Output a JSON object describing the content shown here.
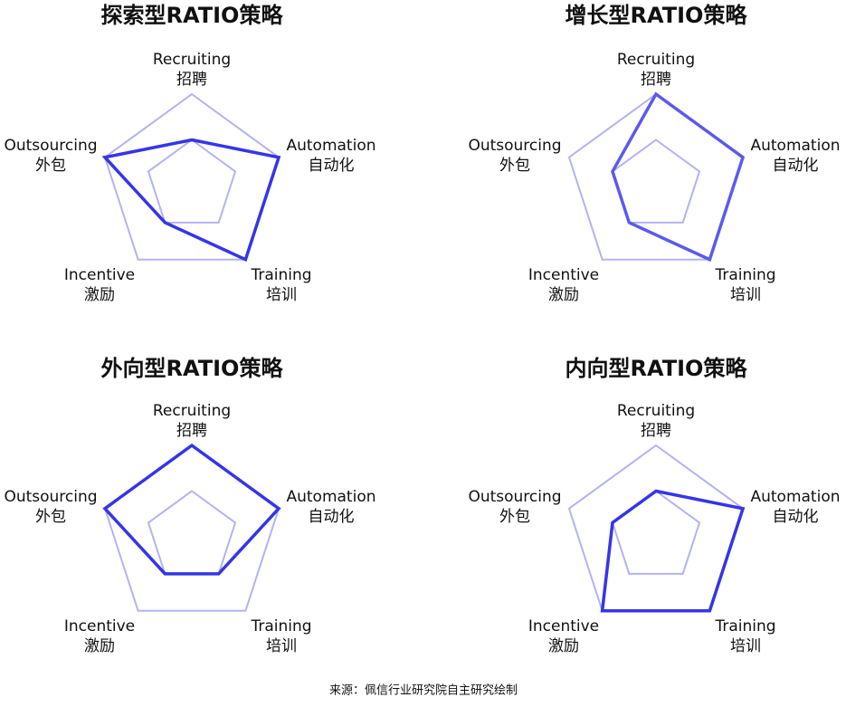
{
  "chart_data": [
    {
      "type": "radar",
      "title": "探索型RATIO策略",
      "categories": [
        "Recruiting",
        "Automation",
        "Training",
        "Incentive",
        "Outsourcing"
      ],
      "categories_zh": [
        "招聘",
        "自动化",
        "培训",
        "激励",
        "外包"
      ],
      "rlim": [
        0,
        2
      ],
      "rticks": [
        1,
        2
      ],
      "grid_color": "#b3b3f2",
      "series": [
        {
          "color": "#3535e8",
          "values": [
            1,
            2,
            2,
            1,
            2
          ]
        }
      ]
    },
    {
      "type": "radar",
      "title": "增长型RATIO策略",
      "categories": [
        "Recruiting",
        "Automation",
        "Training",
        "Incentive",
        "Outsourcing"
      ],
      "categories_zh": [
        "招聘",
        "自动化",
        "培训",
        "激励",
        "外包"
      ],
      "rlim": [
        0,
        2
      ],
      "rticks": [
        1,
        2
      ],
      "grid_color": "#b3b3f2",
      "series": [
        {
          "color": "#5a5aee",
          "values": [
            2,
            2,
            2,
            1,
            1
          ]
        }
      ]
    },
    {
      "type": "radar",
      "title": "外向型RATIO策略",
      "categories": [
        "Recruiting",
        "Automation",
        "Training",
        "Incentive",
        "Outsourcing"
      ],
      "categories_zh": [
        "招聘",
        "自动化",
        "培训",
        "激励",
        "外包"
      ],
      "rlim": [
        0,
        2
      ],
      "rticks": [
        1,
        2
      ],
      "grid_color": "#b3b3f2",
      "series": [
        {
          "color": "#3535e8",
          "values": [
            2,
            2,
            1,
            1,
            2
          ]
        }
      ]
    },
    {
      "type": "radar",
      "title": "内向型RATIO策略",
      "categories": [
        "Recruiting",
        "Automation",
        "Training",
        "Incentive",
        "Outsourcing"
      ],
      "categories_zh": [
        "招聘",
        "自动化",
        "培训",
        "激励",
        "外包"
      ],
      "rlim": [
        0,
        2
      ],
      "rticks": [
        1,
        2
      ],
      "grid_color": "#b3b3f2",
      "series": [
        {
          "color": "#3535e8",
          "values": [
            1,
            2,
            2,
            2,
            1
          ]
        }
      ]
    }
  ],
  "source": "来源：佩信行业研究院自主研究绘制"
}
